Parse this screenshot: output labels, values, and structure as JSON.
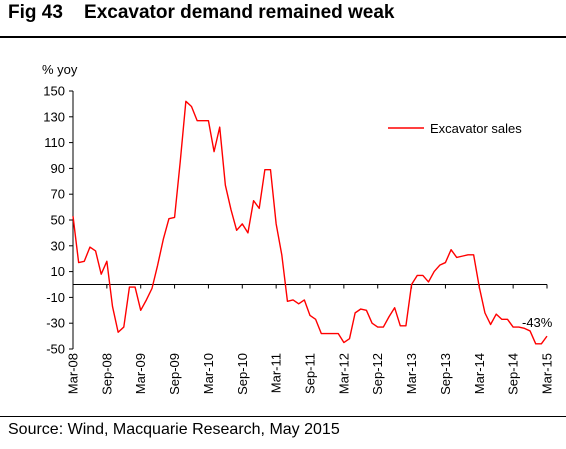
{
  "figure": {
    "title": "Fig 43    Excavator demand remained weak",
    "source": "Source: Wind, Macquarie Research, May 2015"
  },
  "colors": {
    "series": "#ff0000",
    "axis": "#000000",
    "background": "#ffffff"
  },
  "chart_data": {
    "type": "line",
    "ylabel": "% yoy",
    "xlabel": "",
    "ylim": [
      -50,
      150
    ],
    "yticks": [
      150,
      130,
      110,
      90,
      70,
      50,
      30,
      10,
      -10,
      -30,
      -50
    ],
    "xticks": [
      "Mar-08",
      "Sep-08",
      "Mar-09",
      "Sep-09",
      "Mar-10",
      "Sep-10",
      "Mar-11",
      "Sep-11",
      "Mar-12",
      "Sep-12",
      "Mar-13",
      "Sep-13",
      "Mar-14",
      "Sep-14",
      "Mar-15"
    ],
    "grid": false,
    "legend_position": "top-right",
    "annotation": "-43%",
    "series": [
      {
        "name": "Excavator sales",
        "color": "#ff0000",
        "values": [
          53,
          17,
          18,
          29,
          26,
          8,
          18,
          -17,
          -37,
          -33,
          -2,
          -2,
          -20,
          -12,
          -3,
          15,
          35,
          51,
          52,
          95,
          142,
          138,
          127,
          127,
          127,
          103,
          122,
          77,
          58,
          42,
          47,
          40,
          65,
          59,
          89,
          89,
          47,
          23,
          -13,
          -12,
          -15,
          -12,
          -24,
          -27,
          -38,
          -38,
          -38,
          -38,
          -45,
          -42,
          -22,
          -19,
          -20,
          -30,
          -33,
          -33,
          -25,
          -18,
          -32,
          -32,
          0,
          7,
          7,
          2,
          10,
          15,
          17,
          27,
          21,
          22,
          23,
          23,
          -2,
          -22,
          -31,
          -23,
          -27,
          -27,
          -33,
          -33,
          -34,
          -36,
          -46,
          -46,
          -40
        ]
      }
    ]
  }
}
